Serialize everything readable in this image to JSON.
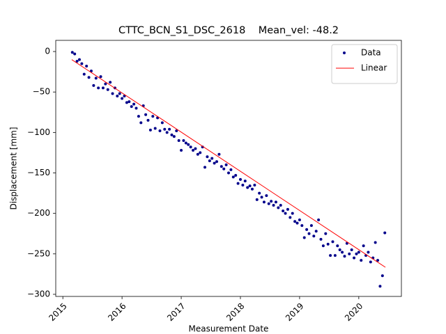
{
  "chart_data": {
    "type": "scatter",
    "title": "CTTC_BCN_S1_DSC_2618    Mean_vel: -48.2",
    "xlabel": "Measurement Date",
    "ylabel": "Displacement [mm]",
    "xlim": [
      2014.88,
      2020.72
    ],
    "ylim": [
      -302.6,
      13.8
    ],
    "xticks": [
      2015,
      2016,
      2017,
      2018,
      2019,
      2020
    ],
    "yticks": [
      0,
      {
        "value": -50,
        "label": "−50"
      },
      {
        "value": -100,
        "label": "−100"
      },
      {
        "value": -150,
        "label": "−150"
      },
      {
        "value": -200,
        "label": "−200"
      },
      {
        "value": -250,
        "label": "−250"
      },
      {
        "value": -300,
        "label": "−300"
      }
    ],
    "legend": "upper right",
    "series": [
      {
        "name": "Data",
        "type": "scatter",
        "color": "#00008b",
        "x": [
          2015.16,
          2015.2,
          2015.24,
          2015.28,
          2015.32,
          2015.36,
          2015.4,
          2015.44,
          2015.48,
          2015.52,
          2015.56,
          2015.6,
          2015.64,
          2015.68,
          2015.72,
          2015.76,
          2015.8,
          2015.84,
          2015.88,
          2015.92,
          2015.96,
          2016,
          2016.04,
          2016.08,
          2016.12,
          2016.16,
          2016.2,
          2016.24,
          2016.28,
          2016.32,
          2016.36,
          2016.4,
          2016.44,
          2016.48,
          2016.52,
          2016.56,
          2016.6,
          2016.64,
          2016.68,
          2016.72,
          2016.76,
          2016.8,
          2016.84,
          2016.88,
          2016.92,
          2016.96,
          2017,
          2017.04,
          2017.08,
          2017.12,
          2017.16,
          2017.2,
          2017.24,
          2017.28,
          2017.32,
          2017.36,
          2017.4,
          2017.44,
          2017.48,
          2017.52,
          2017.56,
          2017.6,
          2017.64,
          2017.68,
          2017.72,
          2017.76,
          2017.8,
          2017.84,
          2017.88,
          2017.92,
          2017.96,
          2018,
          2018.04,
          2018.08,
          2018.12,
          2018.16,
          2018.2,
          2018.24,
          2018.28,
          2018.32,
          2018.36,
          2018.4,
          2018.44,
          2018.48,
          2018.52,
          2018.56,
          2018.6,
          2018.64,
          2018.68,
          2018.72,
          2018.76,
          2018.8,
          2018.84,
          2018.88,
          2018.92,
          2018.96,
          2019,
          2019.04,
          2019.08,
          2019.12,
          2019.16,
          2019.2,
          2019.24,
          2019.28,
          2019.32,
          2019.36,
          2019.4,
          2019.44,
          2019.48,
          2019.52,
          2019.56,
          2019.6,
          2019.64,
          2019.68,
          2019.72,
          2019.76,
          2019.8,
          2019.84,
          2019.88,
          2019.92,
          2019.96,
          2020,
          2020.04,
          2020.08,
          2020.12,
          2020.16,
          2020.2,
          2020.24,
          2020.28,
          2020.32,
          2020.36,
          2020.4,
          2020.44
        ],
        "values": [
          -1,
          -3,
          -12,
          -10,
          -15,
          -28,
          -18,
          -32,
          -24,
          -42,
          -33,
          -45,
          -31,
          -45,
          -40,
          -47,
          -38,
          -52,
          -45,
          -55,
          -52,
          -58,
          -55,
          -63,
          -62,
          -68,
          -65,
          -70,
          -80,
          -88,
          -67,
          -78,
          -85,
          -97,
          -80,
          -95,
          -82,
          -98,
          -88,
          -96,
          -100,
          -96,
          -103,
          -105,
          -98,
          -110,
          -122,
          -110,
          -113,
          -115,
          -118,
          -122,
          -120,
          -127,
          -125,
          -118,
          -143,
          -130,
          -135,
          -132,
          -138,
          -136,
          -127,
          -142,
          -145,
          -140,
          -150,
          -146,
          -155,
          -153,
          -163,
          -158,
          -165,
          -160,
          -168,
          -166,
          -170,
          -165,
          -183,
          -175,
          -180,
          -186,
          -178,
          -188,
          -185,
          -190,
          -186,
          -193,
          -190,
          -197,
          -200,
          -195,
          -205,
          -200,
          -210,
          -212,
          -208,
          -215,
          -230,
          -220,
          -225,
          -215,
          -228,
          -222,
          -208,
          -232,
          -240,
          -225,
          -238,
          -252,
          -235,
          -252,
          -240,
          -245,
          -248,
          -253,
          -237,
          -250,
          -245,
          -255,
          -250,
          -248,
          -258,
          -240,
          -252,
          -248,
          -260,
          -255,
          -236,
          -258,
          -290,
          -277,
          -224
        ]
      },
      {
        "name": "Linear",
        "type": "line",
        "color": "#ff0000",
        "x": [
          2015.15,
          2020.45
        ],
        "values": [
          -10,
          -266.6
        ]
      }
    ]
  }
}
